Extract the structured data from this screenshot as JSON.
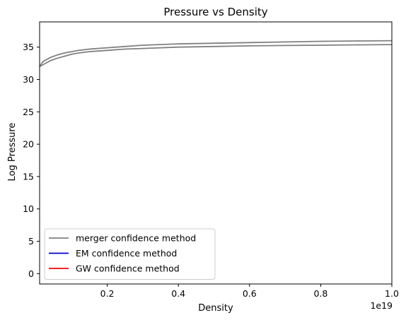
{
  "chart_data": {
    "type": "line",
    "title": "Pressure vs Density",
    "xlabel": "Density",
    "ylabel": "Log Pressure",
    "x_offset_label": "1e19",
    "xlim": [
      0.01,
      1.0
    ],
    "ylim": [
      -1.6,
      38.9
    ],
    "x_ticks": [
      0.2,
      0.4,
      0.6,
      0.8,
      1.0
    ],
    "x_tick_labels": [
      "0.2",
      "0.4",
      "0.6",
      "0.8",
      "1.0"
    ],
    "y_ticks": [
      0,
      5,
      10,
      15,
      20,
      25,
      30,
      35
    ],
    "y_tick_labels": [
      "0",
      "5",
      "10",
      "15",
      "20",
      "25",
      "30",
      "35"
    ],
    "grid": false,
    "legend_position": "lower-left",
    "series": [
      {
        "name": "merger confidence method",
        "color": "#808080",
        "branches": [
          {
            "x": [
              0.01,
              0.02,
              0.04,
              0.06,
              0.08,
              0.1,
              0.12,
              0.15,
              0.2,
              0.25,
              0.3,
              0.4,
              0.5,
              0.6,
              0.7,
              0.8,
              0.9,
              1.0
            ],
            "y": [
              32.0,
              32.8,
              33.4,
              33.8,
              34.1,
              34.3,
              34.5,
              34.7,
              34.9,
              35.1,
              35.3,
              35.5,
              35.6,
              35.7,
              35.8,
              35.9,
              35.95,
              36.0
            ]
          },
          {
            "x": [
              0.01,
              0.02,
              0.04,
              0.06,
              0.08,
              0.1,
              0.12,
              0.15,
              0.2,
              0.25,
              0.3,
              0.4,
              0.5,
              0.6,
              0.7,
              0.8,
              0.9,
              1.0
            ],
            "y": [
              32.0,
              32.3,
              32.9,
              33.3,
              33.6,
              33.9,
              34.1,
              34.3,
              34.5,
              34.7,
              34.8,
              35.0,
              35.1,
              35.2,
              35.25,
              35.3,
              35.35,
              35.4
            ]
          }
        ]
      },
      {
        "name": "EM confidence method",
        "color": "#0000cc",
        "branches": []
      },
      {
        "name": "GW confidence method",
        "color": "#ff0000",
        "branches": []
      }
    ]
  }
}
